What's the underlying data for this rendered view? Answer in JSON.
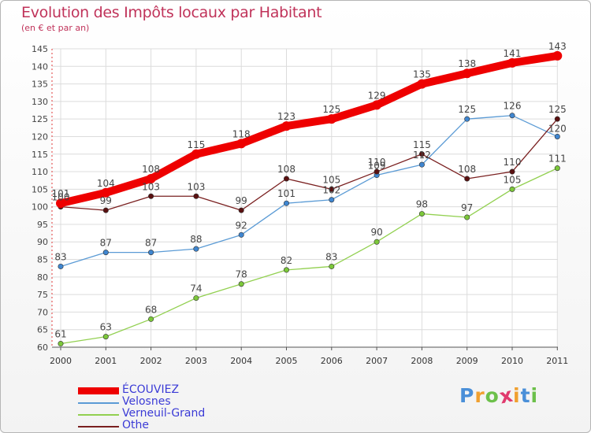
{
  "title": "Evolution des Impôts locaux par Habitant",
  "subtitle": "(en € et par an)",
  "brand": {
    "letters": [
      "P",
      "r",
      "o",
      "x",
      "i",
      "t",
      "i"
    ],
    "colors": [
      "#4a8fd8",
      "#f0a030",
      "#6cc04a",
      "#e03a6e",
      "#f0a030",
      "#4a8fd8",
      "#6cc04a"
    ]
  },
  "chart_data": {
    "type": "line",
    "title": "Evolution des Impôts locaux par Habitant",
    "subtitle": "(en € et par an)",
    "xlabel": "",
    "ylabel": "",
    "x": [
      "2000",
      "2001",
      "2002",
      "2003",
      "2004",
      "2005",
      "2006",
      "2007",
      "2008",
      "2009",
      "2010",
      "2011"
    ],
    "ylim": [
      60,
      145
    ],
    "yticks": [
      60,
      65,
      70,
      75,
      80,
      85,
      90,
      95,
      100,
      105,
      110,
      115,
      120,
      125,
      130,
      135,
      140,
      145
    ],
    "grid": true,
    "legend_position": "bottom-left",
    "series": [
      {
        "name": "ÉCOUVIEZ",
        "color": "#ee0000",
        "values": [
          101,
          104,
          108,
          115,
          118,
          123,
          125,
          129,
          135,
          138,
          141,
          143
        ]
      },
      {
        "name": "Velosnes",
        "color": "#5b9bd5",
        "values": [
          83,
          87,
          87,
          88,
          92,
          101,
          102,
          109,
          112,
          125,
          126,
          120
        ]
      },
      {
        "name": "Verneuil-Grand",
        "color": "#92d050",
        "values": [
          61,
          63,
          68,
          74,
          78,
          82,
          83,
          90,
          98,
          97,
          105,
          111
        ]
      },
      {
        "name": "Othe",
        "color": "#7a2020",
        "values": [
          100,
          99,
          103,
          103,
          99,
          108,
          105,
          110,
          115,
          108,
          110,
          125
        ]
      }
    ]
  }
}
